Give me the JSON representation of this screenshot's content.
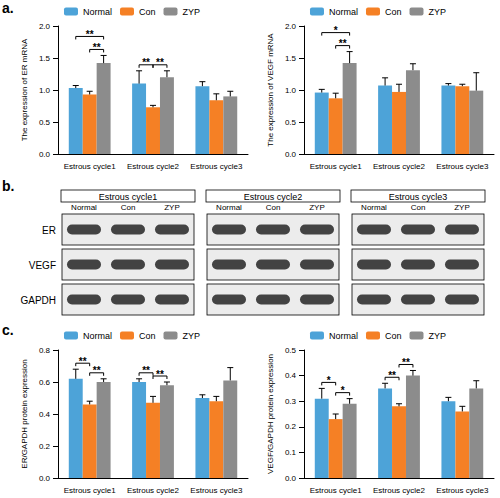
{
  "panel_labels": [
    "a.",
    "b.",
    "c."
  ],
  "chart_data": [
    {
      "type": "bar",
      "y_label": "The expression of ER mRNA",
      "categories": [
        "Estrous cycle1",
        "Estrous cycle2",
        "Estrous cycle3"
      ],
      "series": [
        {
          "name": "Normal",
          "color": "#4da3d8",
          "values": [
            1.03,
            1.1,
            1.06
          ],
          "errors": [
            0.04,
            0.2,
            0.07
          ]
        },
        {
          "name": "Con",
          "color": "#f58025",
          "values": [
            0.93,
            0.73,
            0.84
          ],
          "errors": [
            0.05,
            0.03,
            0.1
          ]
        },
        {
          "name": "ZYP",
          "color": "#8c8c8c",
          "values": [
            1.42,
            1.2,
            0.9
          ],
          "errors": [
            0.12,
            0.1,
            0.08
          ]
        }
      ],
      "significance": [
        {
          "category": 0,
          "from": "Normal",
          "to": "ZYP",
          "label": "**"
        },
        {
          "category": 0,
          "from": "Con",
          "to": "ZYP",
          "label": "**"
        },
        {
          "category": 1,
          "from": "Normal",
          "to": "Con",
          "label": "**"
        },
        {
          "category": 1,
          "from": "Con",
          "to": "ZYP",
          "label": "**"
        }
      ],
      "ylim": [
        0,
        2
      ],
      "yticks": [
        {
          "value": 0,
          "label": "0.0"
        },
        {
          "value": 0.5,
          "label": "0.5"
        },
        {
          "value": 1,
          "label": "1.0"
        },
        {
          "value": 1.5,
          "label": "1.5"
        },
        {
          "value": 2,
          "label": "2.0"
        }
      ],
      "grid": false,
      "legend": "top"
    },
    {
      "type": "bar",
      "y_label": "The expression of VEGF mRNA",
      "categories": [
        "Estrous cycle1",
        "Estrous cycle2",
        "Estrous cycle3"
      ],
      "series": [
        {
          "name": "Normal",
          "color": "#4da3d8",
          "values": [
            0.96,
            1.07,
            1.07
          ],
          "errors": [
            0.05,
            0.12,
            0.03
          ]
        },
        {
          "name": "Con",
          "color": "#f58025",
          "values": [
            0.87,
            0.97,
            1.06
          ],
          "errors": [
            0.08,
            0.12,
            0.03
          ]
        },
        {
          "name": "ZYP",
          "color": "#8c8c8c",
          "values": [
            1.42,
            1.31,
            0.99
          ],
          "errors": [
            0.18,
            0.1,
            0.28
          ]
        }
      ],
      "significance": [
        {
          "category": 0,
          "from": "Normal",
          "to": "ZYP",
          "label": "*"
        },
        {
          "category": 0,
          "from": "Con",
          "to": "ZYP",
          "label": "**"
        }
      ],
      "ylim": [
        0,
        2
      ],
      "yticks": [
        {
          "value": 0,
          "label": "0.0"
        },
        {
          "value": 0.5,
          "label": "0.5"
        },
        {
          "value": 1,
          "label": "1.0"
        },
        {
          "value": 1.5,
          "label": "1.5"
        },
        {
          "value": 2,
          "label": "2.0"
        }
      ],
      "grid": false,
      "legend": "top"
    },
    {
      "type": "bar",
      "y_label": "ER/GAPDH protein expression",
      "categories": [
        "Estrous cycle1",
        "Estrous cycle2",
        "Estrous cycle3"
      ],
      "series": [
        {
          "name": "Normal",
          "color": "#4da3d8",
          "values": [
            0.62,
            0.6,
            0.5
          ],
          "errors": [
            0.06,
            0.02,
            0.02
          ]
        },
        {
          "name": "Con",
          "color": "#f58025",
          "values": [
            0.46,
            0.47,
            0.48
          ],
          "errors": [
            0.02,
            0.04,
            0.03
          ]
        },
        {
          "name": "ZYP",
          "color": "#8c8c8c",
          "values": [
            0.6,
            0.58,
            0.61
          ],
          "errors": [
            0.02,
            0.02,
            0.08
          ]
        }
      ],
      "significance": [
        {
          "category": 0,
          "from": "Normal",
          "to": "Con",
          "label": "**"
        },
        {
          "category": 0,
          "from": "Con",
          "to": "ZYP",
          "label": "**"
        },
        {
          "category": 1,
          "from": "Normal",
          "to": "Con",
          "label": "**"
        },
        {
          "category": 1,
          "from": "Con",
          "to": "ZYP",
          "label": "**"
        }
      ],
      "ylim": [
        0,
        0.8
      ],
      "yticks": [
        {
          "value": 0,
          "label": "0.0"
        },
        {
          "value": 0.2,
          "label": "0.2"
        },
        {
          "value": 0.4,
          "label": "0.4"
        },
        {
          "value": 0.6,
          "label": "0.6"
        },
        {
          "value": 0.8,
          "label": "0.8"
        }
      ],
      "grid": false,
      "legend": "top"
    },
    {
      "type": "bar",
      "y_label": "VEGF/GAPDH protein expression",
      "categories": [
        "Estrous cycle1",
        "Estrous cycle2",
        "Estrous cycle3"
      ],
      "series": [
        {
          "name": "Normal",
          "color": "#4da3d8",
          "values": [
            0.31,
            0.35,
            0.3
          ],
          "errors": [
            0.04,
            0.02,
            0.015
          ]
        },
        {
          "name": "Con",
          "color": "#f58025",
          "values": [
            0.23,
            0.28,
            0.26
          ],
          "errors": [
            0.02,
            0.01,
            0.02
          ]
        },
        {
          "name": "ZYP",
          "color": "#8c8c8c",
          "values": [
            0.29,
            0.4,
            0.35
          ],
          "errors": [
            0.02,
            0.02,
            0.03
          ]
        }
      ],
      "significance": [
        {
          "category": 0,
          "from": "Normal",
          "to": "Con",
          "label": "*"
        },
        {
          "category": 0,
          "from": "Con",
          "to": "ZYP",
          "label": "*"
        },
        {
          "category": 1,
          "from": "Normal",
          "to": "Con",
          "label": "**"
        },
        {
          "category": 1,
          "from": "Con",
          "to": "ZYP",
          "label": "**"
        }
      ],
      "ylim": [
        0,
        0.5
      ],
      "yticks": [
        {
          "value": 0,
          "label": "0.0"
        },
        {
          "value": 0.1,
          "label": "0.1"
        },
        {
          "value": 0.2,
          "label": "0.2"
        },
        {
          "value": 0.3,
          "label": "0.3"
        },
        {
          "value": 0.4,
          "label": "0.4"
        },
        {
          "value": 0.5,
          "label": "0.5"
        }
      ],
      "grid": false,
      "legend": "top"
    }
  ],
  "blot": {
    "rows": [
      "ER",
      "VEGF",
      "GAPDH"
    ],
    "panels": [
      {
        "title": "Estrous cycle1",
        "lanes": [
          "Normal",
          "Con",
          "ZYP"
        ]
      },
      {
        "title": "Estrous cycle2",
        "lanes": [
          "Normal",
          "Con",
          "ZYP"
        ]
      },
      {
        "title": "Estrous cycle3",
        "lanes": [
          "Normal",
          "Con",
          "ZYP"
        ]
      }
    ]
  }
}
